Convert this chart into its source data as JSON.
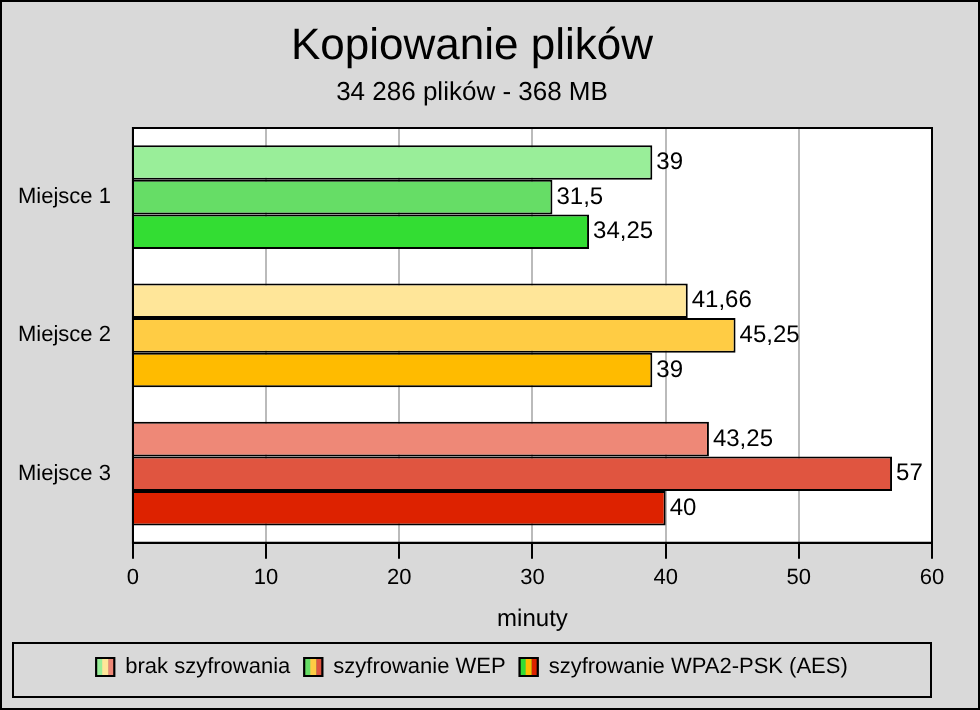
{
  "chart_data": {
    "type": "bar",
    "orientation": "horizontal",
    "title": "Kopiowanie plików",
    "subtitle": "34 286 plików - 368 MB",
    "xlabel": "minuty",
    "categories": [
      "Miejsce 1",
      "Miejsce 2",
      "Miejsce 3"
    ],
    "series": [
      {
        "name": "brak szyfrowania",
        "colors": [
          "#99ee99",
          "#ffe699",
          "#ee8877"
        ],
        "values": [
          39,
          41.66,
          43.25
        ],
        "value_labels": [
          "39",
          "41,66",
          "43,25"
        ]
      },
      {
        "name": "szyfrowanie WEP",
        "colors": [
          "#66dd66",
          "#ffcc44",
          "#e05540"
        ],
        "values": [
          31.5,
          45.25,
          57
        ],
        "value_labels": [
          "31,5",
          "45,25",
          "57"
        ]
      },
      {
        "name": "szyfrowanie WPA2-PSK (AES)",
        "colors": [
          "#33dd33",
          "#ffbb00",
          "#dd2200"
        ],
        "values": [
          34.25,
          39,
          40
        ],
        "value_labels": [
          "34,25",
          "39",
          "40"
        ]
      }
    ],
    "xlim": [
      0,
      60
    ],
    "xticks": [
      0,
      10,
      20,
      30,
      40,
      50,
      60
    ],
    "grid": "x",
    "legend": "bottom"
  }
}
